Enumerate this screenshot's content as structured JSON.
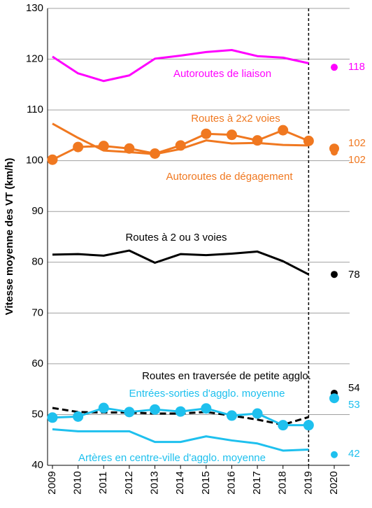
{
  "chart_data": {
    "type": "line",
    "y_label": "Vitesse moyenne des VT (km/h)",
    "x": [
      2009,
      2010,
      2011,
      2012,
      2013,
      2014,
      2015,
      2016,
      2017,
      2018,
      2019,
      2020
    ],
    "xlim": [
      2009,
      2020
    ],
    "ylim": [
      40,
      130
    ],
    "yticks": [
      40,
      50,
      60,
      70,
      80,
      90,
      100,
      110,
      120,
      130
    ],
    "grid": true,
    "last_point_detached": true,
    "dashed_vertical_at": 2019,
    "series": [
      {
        "name": "Autoroutes de liaison",
        "color": "#ff00ff",
        "markers": false,
        "dashed": false,
        "values": [
          120.5,
          117.2,
          115.7,
          116.8,
          120.1,
          120.7,
          121.4,
          121.8,
          120.6,
          120.3,
          119.2,
          118.4
        ],
        "value_labels": [
          null,
          null,
          null,
          null,
          null,
          null,
          null,
          null,
          null,
          null,
          null,
          "118"
        ]
      },
      {
        "name": "Routes à 2x2 voies",
        "color": "#f07820",
        "markers": true,
        "dashed": false,
        "values": [
          100.2,
          102.7,
          102.9,
          102.4,
          101.4,
          103.0,
          105.3,
          105.1,
          104.0,
          106.0,
          103.9,
          102.4
        ],
        "value_labels": [
          null,
          null,
          null,
          null,
          null,
          null,
          null,
          null,
          null,
          null,
          null,
          "102"
        ]
      },
      {
        "name": "Autoroutes de dégagement",
        "color": "#f07820",
        "markers": false,
        "dashed": false,
        "values": [
          107.3,
          104.5,
          102.0,
          101.7,
          101.3,
          102.3,
          104.0,
          103.4,
          103.5,
          103.1,
          103.0,
          101.7
        ],
        "value_labels": [
          null,
          null,
          null,
          null,
          null,
          null,
          null,
          null,
          null,
          null,
          null,
          "102"
        ]
      },
      {
        "name": "Routes à 2 ou 3 voies",
        "color": "#000000",
        "markers": false,
        "dashed": false,
        "values": [
          81.5,
          81.6,
          81.3,
          82.3,
          79.9,
          81.6,
          81.4,
          81.7,
          82.1,
          80.2,
          77.6,
          77.6
        ],
        "value_labels": [
          null,
          null,
          null,
          null,
          null,
          null,
          null,
          null,
          null,
          null,
          null,
          "78"
        ]
      },
      {
        "name": "Routes en traversée de petite agglo.",
        "color": "#000000",
        "markers": false,
        "dashed": true,
        "values": [
          51.3,
          50.5,
          50.4,
          50.4,
          50.2,
          50.2,
          50.5,
          49.8,
          49.0,
          48.0,
          49.5,
          54.2
        ],
        "value_labels": [
          null,
          null,
          null,
          null,
          null,
          null,
          null,
          null,
          null,
          null,
          null,
          "54"
        ]
      },
      {
        "name": "Entrées-sorties d'agglo. moyenne",
        "color": "#1ec0ee",
        "markers": true,
        "dashed": false,
        "values": [
          49.4,
          49.6,
          51.3,
          50.5,
          51.0,
          50.6,
          51.2,
          49.8,
          50.2,
          47.9,
          47.9,
          53.2
        ],
        "value_labels": [
          null,
          null,
          null,
          null,
          null,
          null,
          null,
          null,
          null,
          null,
          null,
          "53"
        ]
      },
      {
        "name": "Artères en centre-ville d'agglo. moyenne",
        "color": "#1ec0ee",
        "markers": false,
        "dashed": false,
        "values": [
          47.1,
          46.7,
          46.7,
          46.7,
          44.6,
          44.6,
          45.7,
          44.9,
          44.3,
          42.9,
          43.1,
          42.1
        ],
        "value_labels": [
          null,
          null,
          null,
          null,
          null,
          null,
          null,
          null,
          null,
          null,
          null,
          "42"
        ]
      }
    ]
  }
}
